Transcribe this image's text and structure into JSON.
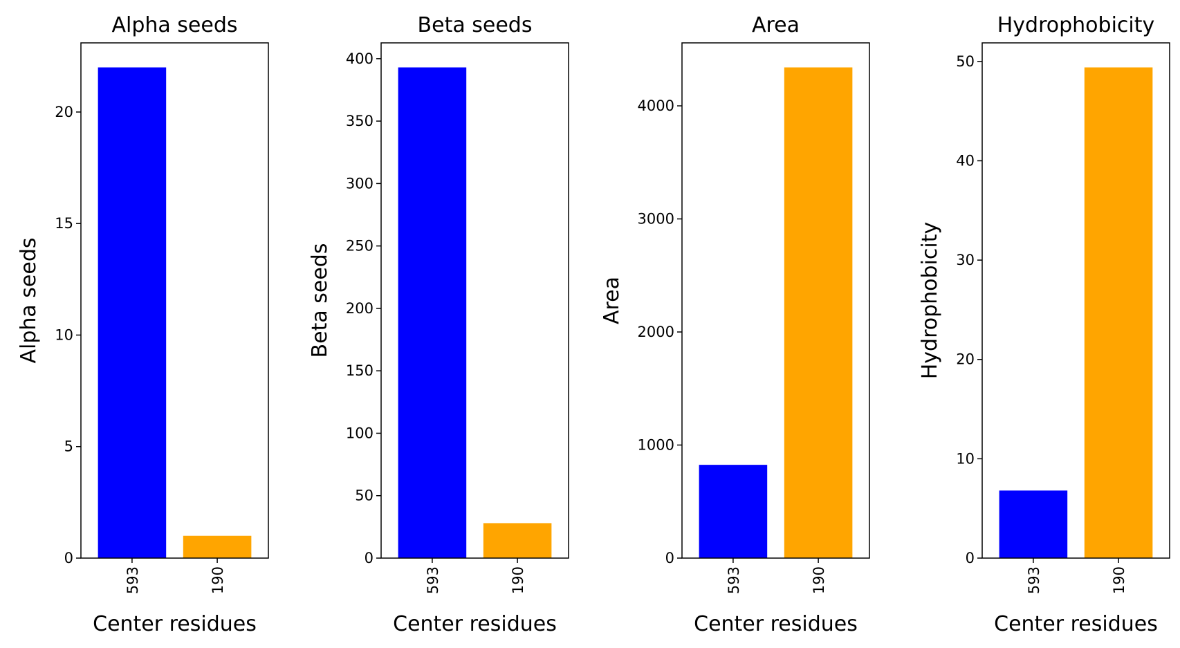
{
  "chart_data": [
    {
      "type": "bar",
      "title": "Alpha seeds",
      "xlabel": "Center residues",
      "ylabel": "Alpha seeds",
      "categories": [
        "593",
        "190"
      ],
      "values": [
        22,
        1
      ],
      "colors": [
        "#0000ff",
        "#ffa500"
      ],
      "ylim": [
        0,
        23.1
      ],
      "yticks": [
        0,
        5,
        10,
        15,
        20
      ]
    },
    {
      "type": "bar",
      "title": "Beta seeds",
      "xlabel": "Center residues",
      "ylabel": "Beta seeds",
      "categories": [
        "593",
        "190"
      ],
      "values": [
        393,
        28
      ],
      "colors": [
        "#0000ff",
        "#ffa500"
      ],
      "ylim": [
        0,
        412.65
      ],
      "yticks": [
        0,
        50,
        100,
        150,
        200,
        250,
        300,
        350,
        400
      ]
    },
    {
      "type": "bar",
      "title": "Area",
      "xlabel": "Center residues",
      "ylabel": "Area",
      "categories": [
        "593",
        "190"
      ],
      "values": [
        825,
        4340
      ],
      "colors": [
        "#0000ff",
        "#ffa500"
      ],
      "ylim": [
        0,
        4557
      ],
      "yticks": [
        0,
        1000,
        2000,
        3000,
        4000
      ]
    },
    {
      "type": "bar",
      "title": "Hydrophobicity",
      "xlabel": "Center residues",
      "ylabel": "Hydrophobicity",
      "categories": [
        "593",
        "190"
      ],
      "values": [
        6.8,
        49.4
      ],
      "colors": [
        "#0000ff",
        "#ffa500"
      ],
      "ylim": [
        0,
        51.87
      ],
      "yticks": [
        0,
        10,
        20,
        30,
        40,
        50
      ]
    }
  ]
}
